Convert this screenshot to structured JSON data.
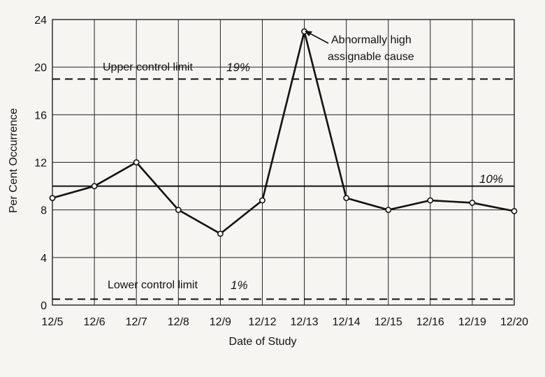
{
  "chart_data": {
    "type": "line",
    "xlabel": "Date of Study",
    "ylabel": "Per Cent Occurrence",
    "categories": [
      "12/5",
      "12/6",
      "12/7",
      "12/8",
      "12/9",
      "12/12",
      "12/13",
      "12/14",
      "12/15",
      "12/16",
      "12/19",
      "12/20"
    ],
    "values": [
      9,
      10,
      12,
      8,
      6,
      8.8,
      23,
      9,
      8,
      8.8,
      8.6,
      7.9
    ],
    "ylim": [
      0,
      24
    ],
    "yticks": [
      0,
      4,
      8,
      12,
      16,
      20,
      24
    ],
    "grid": true,
    "reference_lines": [
      {
        "label": "Upper control limit",
        "value_label": "19%",
        "value": 19,
        "style": "dashed"
      },
      {
        "label": "",
        "value_label": "10%",
        "value": 10,
        "style": "solid"
      },
      {
        "label": "Lower control limit",
        "value_label": "1%",
        "value": 0.5,
        "style": "dashed"
      }
    ],
    "annotation": {
      "line1": "Abnormally high",
      "line2": "assignable cause",
      "target_index": 6
    },
    "colors": {
      "line": "#111111",
      "grid": "#222222",
      "background": "#f6f5f2"
    }
  }
}
